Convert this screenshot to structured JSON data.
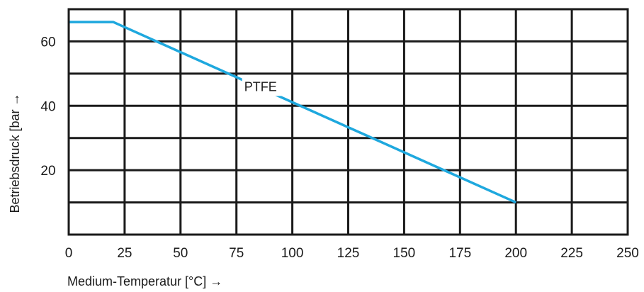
{
  "chart_data": {
    "type": "line",
    "xlabel": "Medium-Temperatur [°C] →",
    "ylabel": "Betriebsdruck [bar →",
    "xlim": [
      0,
      250
    ],
    "ylim": [
      0,
      70
    ],
    "x_ticks": [
      "0",
      "25",
      "50",
      "75",
      "100",
      "125",
      "150",
      "175",
      "200",
      "225",
      "250"
    ],
    "y_ticks": [
      "20",
      "40",
      "60"
    ],
    "grid": true,
    "series": [
      {
        "name": "PTFE",
        "color": "#1ea8de",
        "points": [
          [
            0,
            66
          ],
          [
            20,
            66
          ],
          [
            200,
            10
          ]
        ]
      }
    ]
  }
}
